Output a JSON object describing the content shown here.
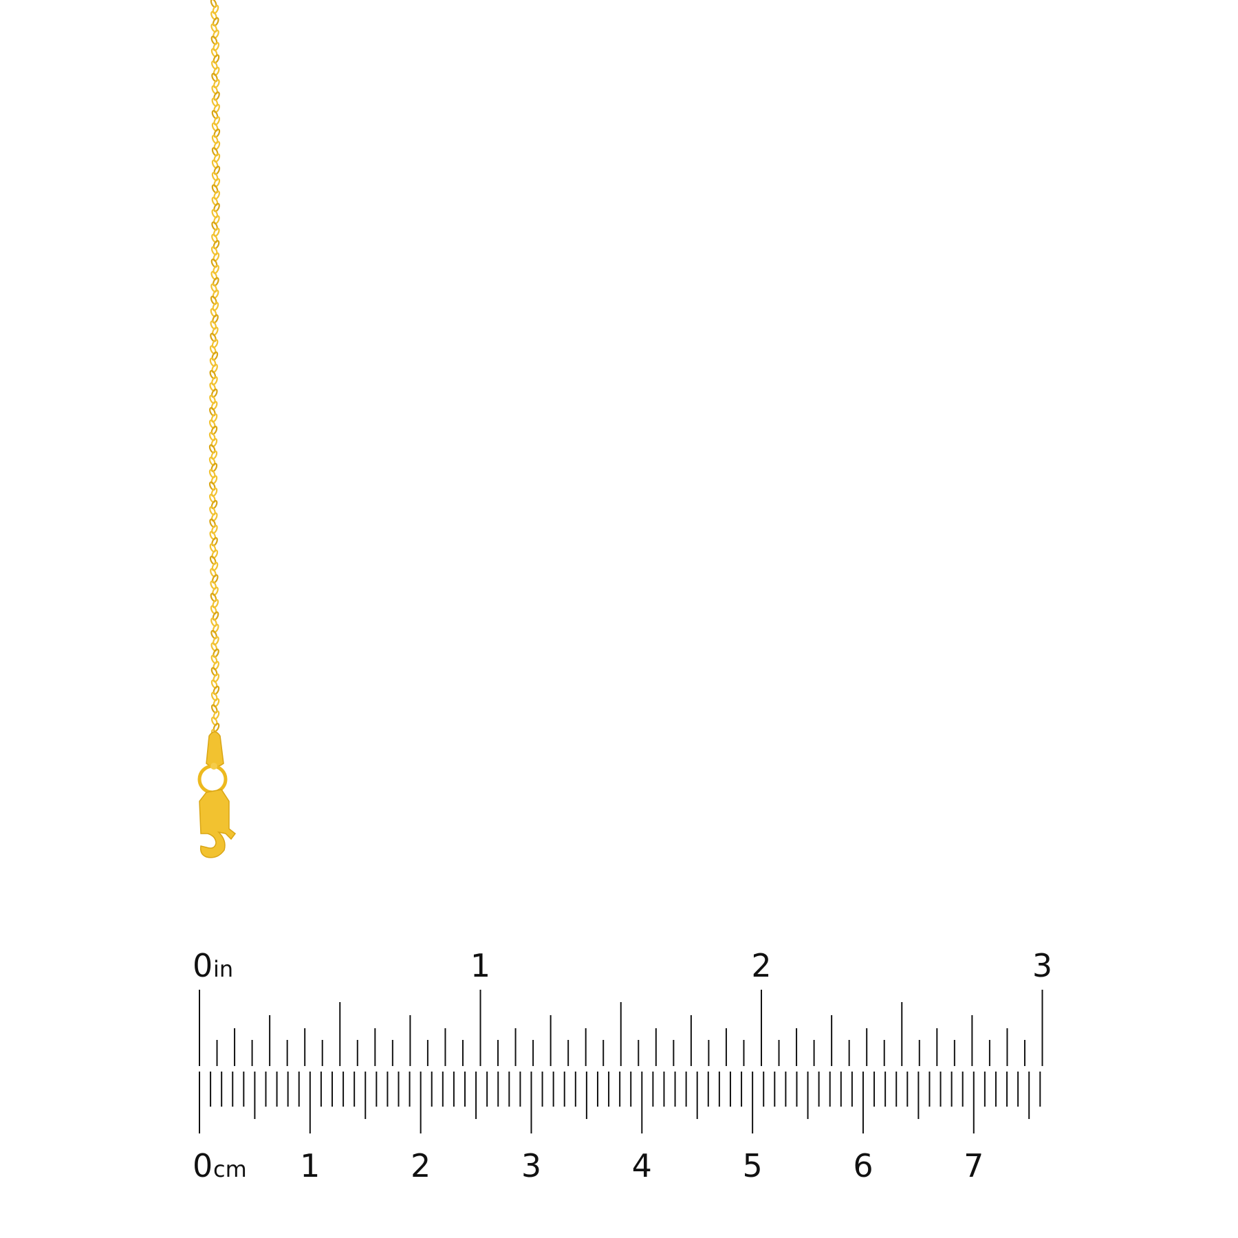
{
  "product": {
    "name": "gold rope chain with lobster clasp",
    "metal_color": "#F2C230",
    "metal_shade": "#D9A514"
  },
  "ruler": {
    "ink_color": "#111111",
    "inch": {
      "unit": "in",
      "labels": [
        "0",
        "1",
        "2",
        "3"
      ],
      "subdivisions": 16
    },
    "cm": {
      "unit": "cm",
      "labels": [
        "0",
        "1",
        "2",
        "3",
        "4",
        "5",
        "6",
        "7"
      ],
      "subdivisions": 10
    }
  }
}
